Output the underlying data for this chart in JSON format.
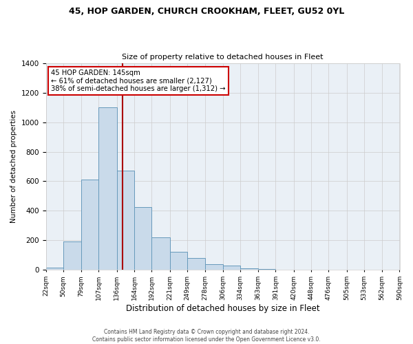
{
  "title": "45, HOP GARDEN, CHURCH CROOKHAM, FLEET, GU52 0YL",
  "subtitle": "Size of property relative to detached houses in Fleet",
  "xlabel": "Distribution of detached houses by size in Fleet",
  "ylabel": "Number of detached properties",
  "bar_color": "#c9daea",
  "bar_edge_color": "#6699bb",
  "grid_color": "#cccccc",
  "background_color": "#ffffff",
  "plot_bg_color": "#eaf0f6",
  "annotation_box_color": "#ffffff",
  "annotation_box_edge": "#cc0000",
  "vline_color": "#aa0000",
  "vline_x": 145,
  "categories": [
    "22sqm",
    "50sqm",
    "79sqm",
    "107sqm",
    "136sqm",
    "164sqm",
    "192sqm",
    "221sqm",
    "249sqm",
    "278sqm",
    "306sqm",
    "334sqm",
    "363sqm",
    "391sqm",
    "420sqm",
    "448sqm",
    "476sqm",
    "505sqm",
    "533sqm",
    "562sqm",
    "590sqm"
  ],
  "bin_edges": [
    22,
    50,
    79,
    107,
    136,
    164,
    192,
    221,
    249,
    278,
    306,
    334,
    363,
    391,
    420,
    448,
    476,
    505,
    533,
    562,
    590
  ],
  "bar_heights": [
    15,
    195,
    610,
    1100,
    670,
    425,
    220,
    125,
    80,
    40,
    28,
    10,
    5,
    0,
    0,
    0,
    0,
    0,
    0,
    0
  ],
  "ylim": [
    0,
    1400
  ],
  "yticks": [
    0,
    200,
    400,
    600,
    800,
    1000,
    1200,
    1400
  ],
  "annotation_line1": "45 HOP GARDEN: 145sqm",
  "annotation_line2": "← 61% of detached houses are smaller (2,127)",
  "annotation_line3": "38% of semi-detached houses are larger (1,312) →",
  "footer_line1": "Contains HM Land Registry data © Crown copyright and database right 2024.",
  "footer_line2": "Contains public sector information licensed under the Open Government Licence v3.0."
}
